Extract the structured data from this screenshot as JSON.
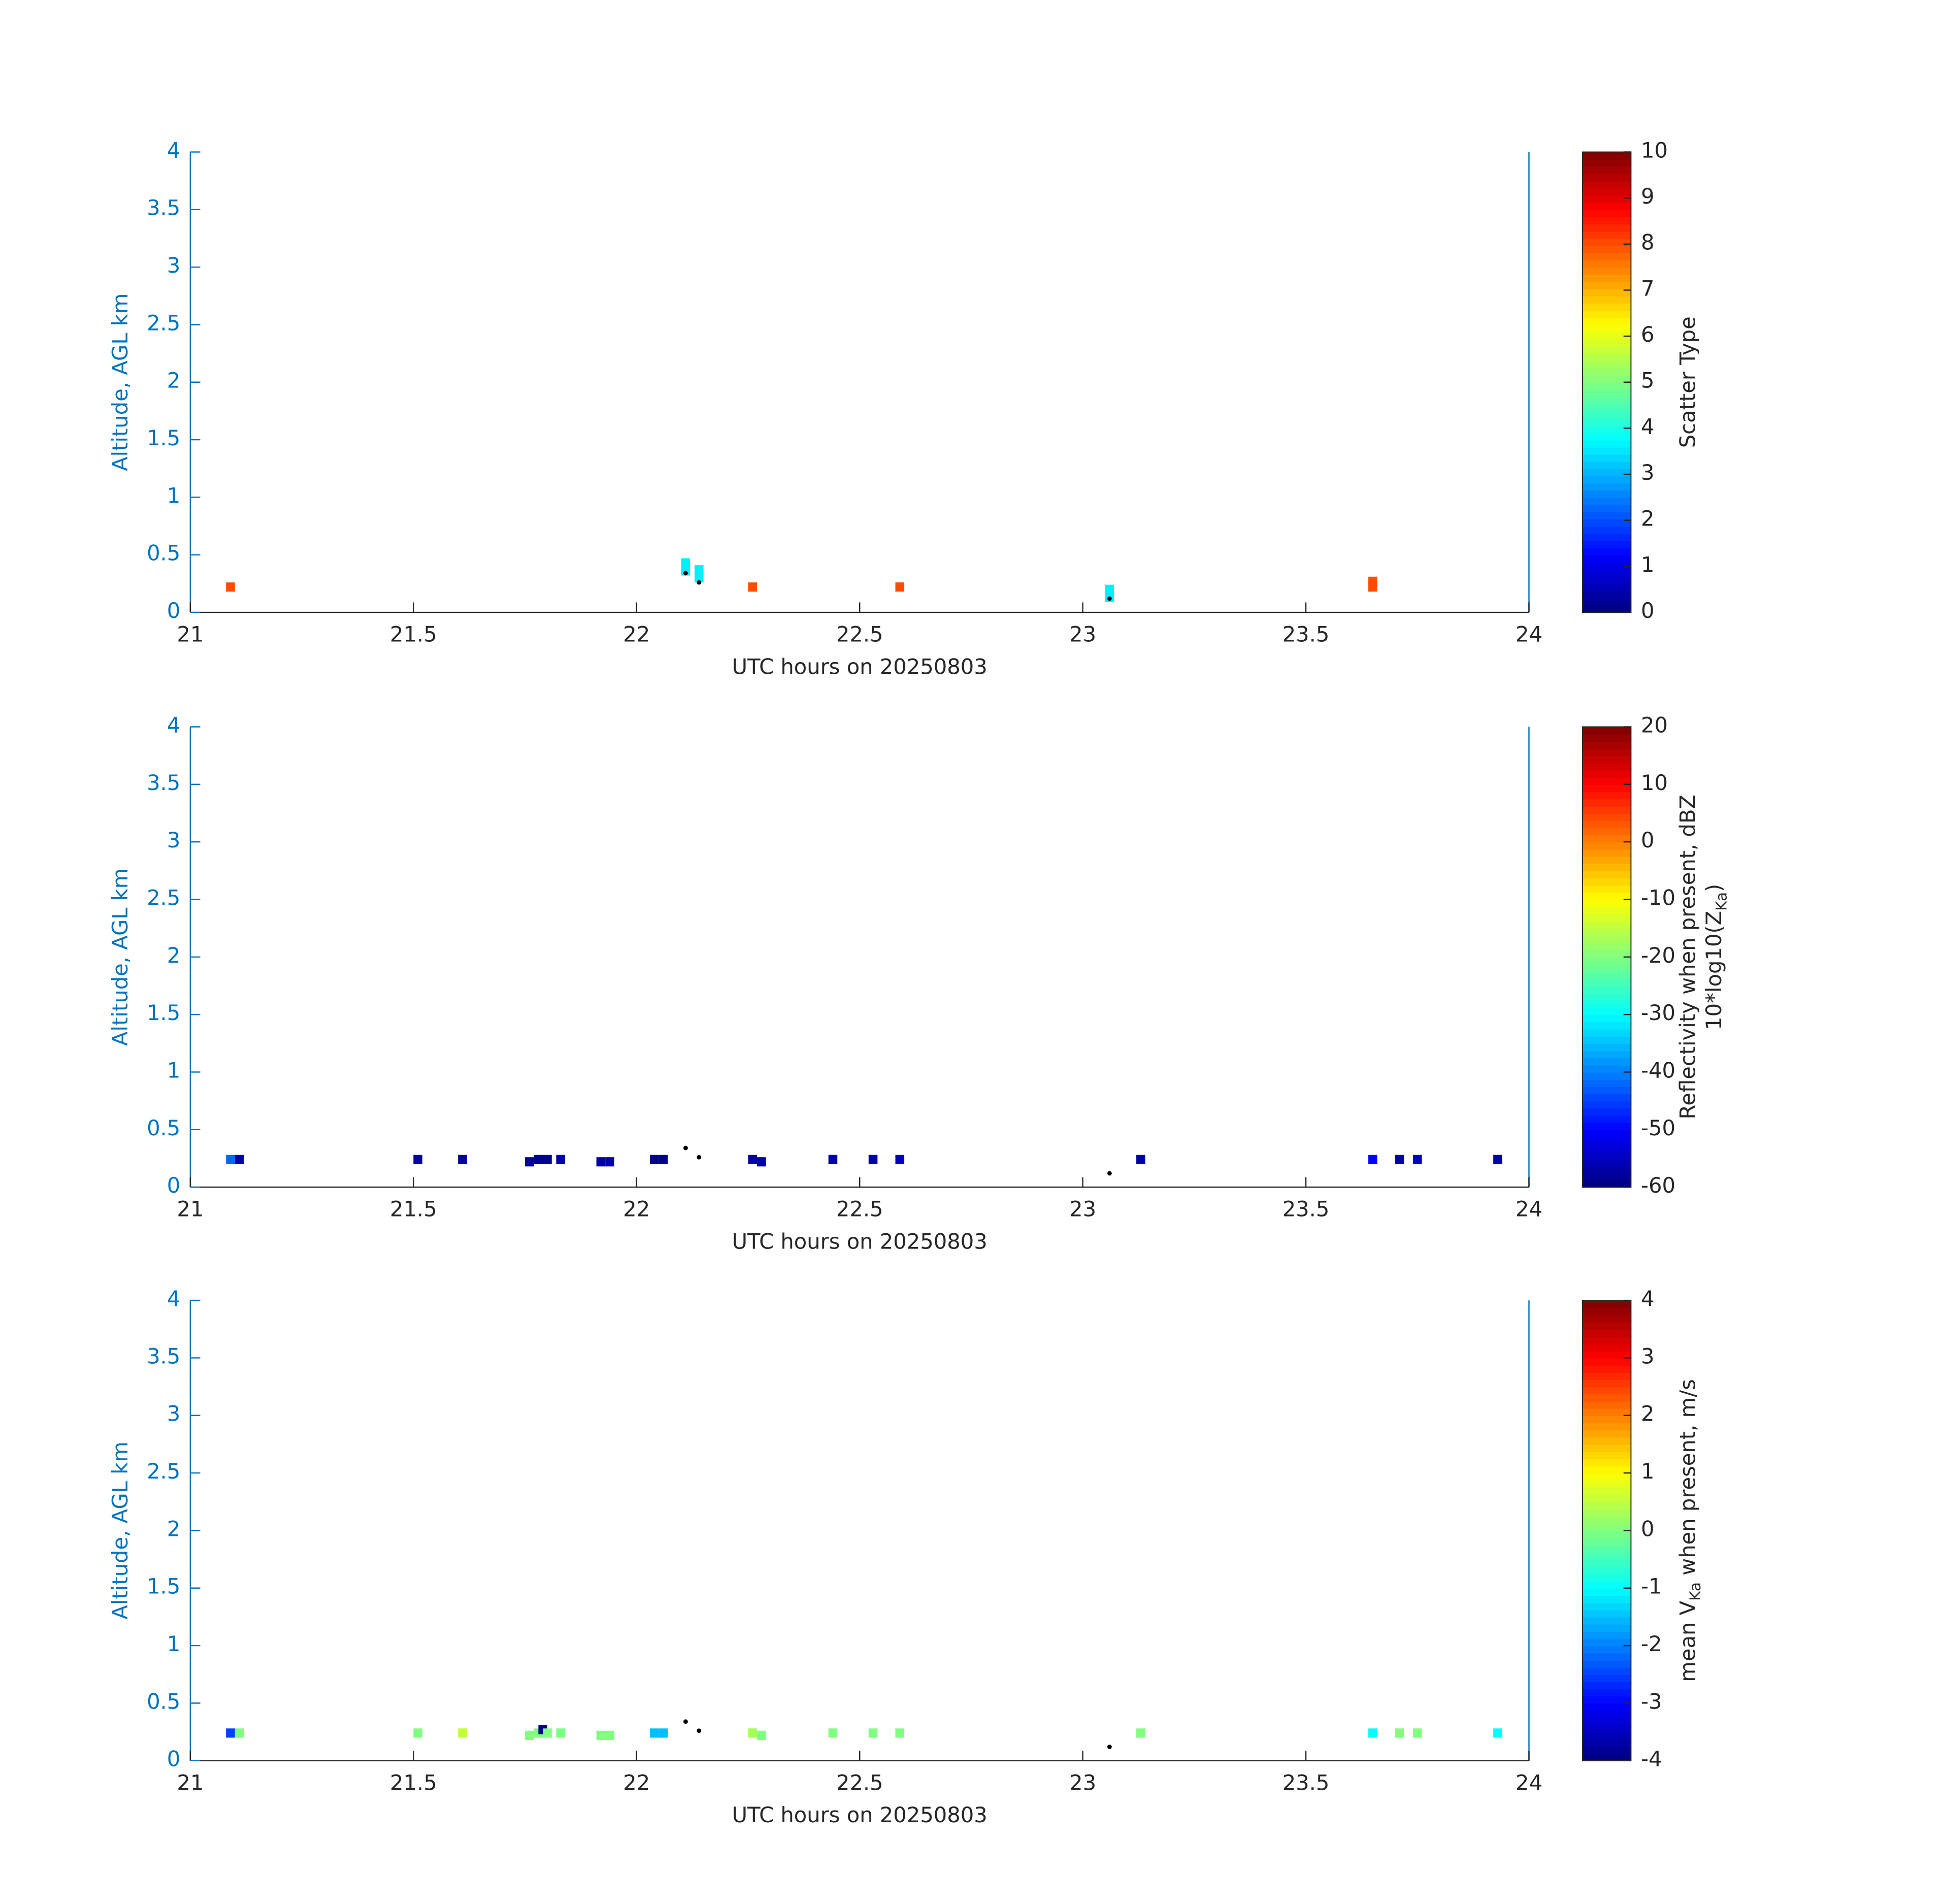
{
  "chart_data": [
    {
      "type": "heatmap",
      "xlabel": "UTC hours on 20250803",
      "ylabel": "Altitude, AGL km",
      "xlim": [
        21,
        24
      ],
      "xticks": [
        21,
        21.5,
        22,
        22.5,
        23,
        23.5,
        24
      ],
      "ylim": [
        0,
        4
      ],
      "yticks": [
        0,
        0.5,
        1,
        1.5,
        2,
        2.5,
        3,
        3.5,
        4
      ],
      "colormap": "jet",
      "clim": [
        0,
        10
      ],
      "cticks": [
        0,
        1,
        2,
        3,
        4,
        5,
        6,
        7,
        8,
        9,
        10
      ],
      "colorbar_label": [
        [
          "Scatter Type"
        ]
      ],
      "cells": {
        "x": [
          21.09,
          22.11,
          22.11,
          22.14,
          22.14,
          22.26,
          22.59,
          23.06,
          23.06,
          23.65,
          23.65
        ],
        "y": [
          0.22,
          0.36,
          0.43,
          0.3,
          0.37,
          0.22,
          0.22,
          0.13,
          0.2,
          0.22,
          0.27
        ],
        "values": [
          8,
          3.6,
          3.6,
          3.6,
          3.6,
          8,
          8,
          3.6,
          3.6,
          8,
          8
        ]
      },
      "points": {
        "x": [
          22.11,
          22.14,
          23.06
        ],
        "y": [
          0.34,
          0.26,
          0.12
        ]
      }
    },
    {
      "type": "heatmap",
      "xlabel": "UTC hours on 20250803",
      "ylabel": "Altitude, AGL km",
      "xlim": [
        21,
        24
      ],
      "xticks": [
        21,
        21.5,
        22,
        22.5,
        23,
        23.5,
        24
      ],
      "ylim": [
        0,
        4
      ],
      "yticks": [
        0,
        0.5,
        1,
        1.5,
        2,
        2.5,
        3,
        3.5,
        4
      ],
      "colormap": "jet",
      "clim": [
        -60,
        20
      ],
      "cticks": [
        -60,
        -50,
        -40,
        -30,
        -20,
        -10,
        0,
        10,
        20
      ],
      "colorbar_label": [
        [
          "Reflectivity when present, dBZ"
        ],
        [
          "10*log10(Z",
          "Ka",
          ")"
        ]
      ],
      "cells": {
        "x": [
          21.09,
          21.11,
          21.51,
          21.61,
          21.76,
          21.78,
          21.8,
          21.83,
          21.92,
          21.94,
          22.04,
          22.06,
          22.26,
          22.28,
          22.44,
          22.53,
          22.59,
          23.13,
          23.65,
          23.71,
          23.75,
          23.93
        ],
        "y": [
          0.24,
          0.24,
          0.24,
          0.24,
          0.22,
          0.24,
          0.24,
          0.24,
          0.22,
          0.22,
          0.24,
          0.24,
          0.24,
          0.22,
          0.24,
          0.24,
          0.24,
          0.24,
          0.24,
          0.24,
          0.24,
          0.24
        ],
        "values": [
          -42,
          -57,
          -57,
          -57,
          -58,
          -58,
          -58,
          -57,
          -57,
          -57,
          -59,
          -59,
          -57,
          -57,
          -57,
          -57,
          -55,
          -57,
          -50,
          -57,
          -55,
          -57
        ]
      },
      "points": {
        "x": [
          22.11,
          22.14,
          23.06
        ],
        "y": [
          0.34,
          0.26,
          0.12
        ]
      }
    },
    {
      "type": "heatmap",
      "xlabel": "UTC hours on 20250803",
      "ylabel": "Altitude, AGL km",
      "xlim": [
        21,
        24
      ],
      "xticks": [
        21,
        21.5,
        22,
        22.5,
        23,
        23.5,
        24
      ],
      "ylim": [
        0,
        4
      ],
      "yticks": [
        0,
        0.5,
        1,
        1.5,
        2,
        2.5,
        3,
        3.5,
        4
      ],
      "colormap": "jet",
      "clim": [
        -4,
        4
      ],
      "cticks": [
        -4,
        -3,
        -2,
        -1,
        0,
        1,
        2,
        3,
        4
      ],
      "colorbar_label": [
        [
          "mean V",
          "Ka",
          " when present, m/s"
        ]
      ],
      "cells": {
        "x": [
          21.09,
          21.11,
          21.51,
          21.61,
          21.76,
          21.78,
          21.79,
          21.8,
          21.83,
          21.92,
          21.94,
          22.04,
          22.06,
          22.26,
          22.28,
          22.44,
          22.53,
          22.59,
          23.13,
          23.65,
          23.71,
          23.75,
          23.93
        ],
        "y": [
          0.24,
          0.24,
          0.24,
          0.24,
          0.22,
          0.24,
          0.27,
          0.24,
          0.24,
          0.22,
          0.22,
          0.24,
          0.24,
          0.24,
          0.22,
          0.24,
          0.24,
          0.24,
          0.24,
          0.24,
          0.24,
          0.24,
          0.24
        ],
        "values": [
          -2.5,
          0,
          0,
          0.5,
          0,
          0,
          -4,
          0,
          0,
          0,
          0,
          -1.5,
          -1.5,
          0.3,
          0,
          0,
          0,
          0,
          0,
          -1,
          0,
          0,
          -1
        ]
      },
      "points": {
        "x": [
          22.11,
          22.14,
          23.06
        ],
        "y": [
          0.34,
          0.26,
          0.12
        ]
      }
    }
  ]
}
